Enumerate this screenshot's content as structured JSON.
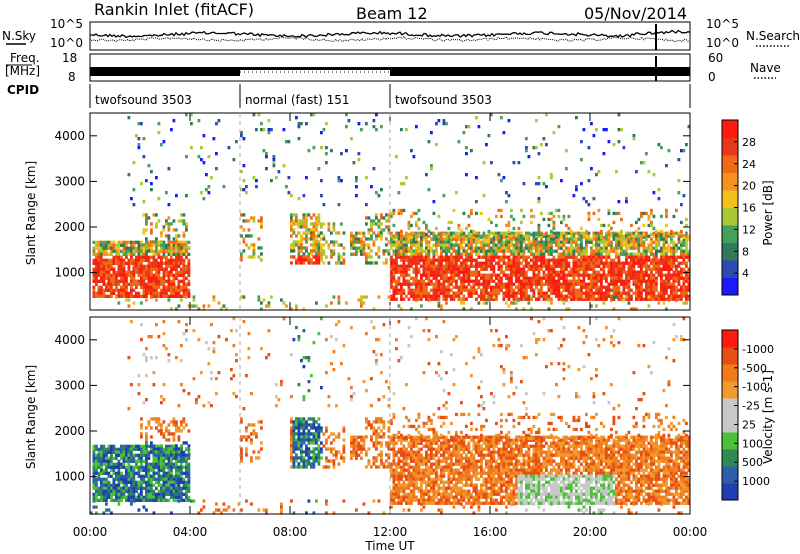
{
  "header": {
    "station": "Rankin Inlet (fitACF)",
    "beam": "Beam 12",
    "date": "05/Nov/2014"
  },
  "noise_panel": {
    "left_label": "N.Sky",
    "right_label": "N.Search",
    "left_ticks": [
      "10^5",
      "10^0"
    ],
    "right_ticks": [
      "10^5",
      "10^0"
    ]
  },
  "freq_panel": {
    "left_label_1": "Freq.",
    "left_label_2": "[MHz]",
    "left_ticks": [
      "18",
      "8"
    ],
    "right_label": "Nave",
    "right_ticks": [
      "60",
      "0"
    ]
  },
  "cpid_panel": {
    "label": "CPID",
    "segments": [
      {
        "label": "twofsound 3503",
        "start_hour": 0,
        "end_hour": 6
      },
      {
        "label": "normal (fast) 151",
        "start_hour": 6,
        "end_hour": 12
      },
      {
        "label": "twofsound 3503",
        "start_hour": 12,
        "end_hour": 24
      }
    ]
  },
  "chart_data": [
    {
      "type": "heatmap",
      "name": "power",
      "ylabel": "Slant Range [km]",
      "xlabel": "Time UT",
      "xlim_hours": [
        0,
        24
      ],
      "ylim": [
        180,
        4500
      ],
      "yticks": [
        1000,
        2000,
        3000,
        4000
      ],
      "colorbar": {
        "label": "Power [dB]",
        "ticks": [
          "4",
          "8",
          "12",
          "16",
          "20",
          "24",
          "28"
        ],
        "colors": [
          "#1a1aff",
          "#2c4bb0",
          "#2f7a58",
          "#45a05a",
          "#a8c834",
          "#f2c11b",
          "#f5911e",
          "#f06a16",
          "#e8381a",
          "#ff1a10"
        ]
      }
    },
    {
      "type": "heatmap",
      "name": "velocity",
      "ylabel": "Slant Range [km]",
      "xlabel": "Time UT",
      "xlim_hours": [
        0,
        24
      ],
      "ylim": [
        180,
        4500
      ],
      "yticks": [
        1000,
        2000,
        3000,
        4000
      ],
      "xticks": [
        "00:00",
        "04:00",
        "08:00",
        "12:00",
        "16:00",
        "20:00",
        "00:00"
      ],
      "colorbar": {
        "label": "Velocity [m s-1]",
        "ticks": [
          "1000",
          "500",
          "100",
          "25",
          "-25",
          "-100",
          "-500",
          "-1000"
        ],
        "colors": [
          "#1f3fb0",
          "#2c5fa8",
          "#2e8a55",
          "#4cc03a",
          "#c8c8c8",
          "#c8c8c8",
          "#f29a2e",
          "#f07a1c",
          "#e84d14",
          "#ff1a10"
        ]
      }
    }
  ]
}
